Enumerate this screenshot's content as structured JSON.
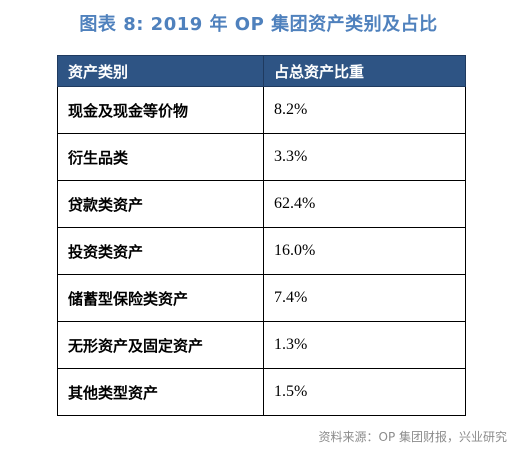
{
  "title": "图表 8: 2019 年 OP 集团资产类别及占比",
  "table": {
    "headers": [
      "资产类别",
      "占总资产比重"
    ],
    "rows": [
      {
        "category": "现金及现金等价物",
        "share": "8.2%"
      },
      {
        "category": "衍生品类",
        "share": "3.3%"
      },
      {
        "category": "贷款类资产",
        "share": "62.4%"
      },
      {
        "category": "投资类资产",
        "share": "16.0%"
      },
      {
        "category": "储蓄型保险类资产",
        "share": "7.4%"
      },
      {
        "category": "无形资产及固定资产",
        "share": "1.3%"
      },
      {
        "category": "其他类型资产",
        "share": "1.5%"
      }
    ]
  },
  "source": "资料来源：OP 集团财报，兴业研究",
  "colors": {
    "title": "#4f81bd",
    "header_bg": "#2e5484",
    "header_text": "#ffffff",
    "source_text": "#8c8c8c"
  }
}
